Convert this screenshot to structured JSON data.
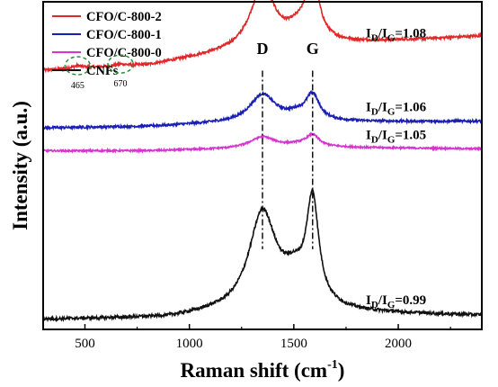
{
  "chart_data": {
    "type": "line",
    "xlabel": "Raman shift (cm",
    "xlabel_sup": "-1",
    "xlabel_end": ")",
    "ylabel": "Intensity (a.u.)",
    "xlim": [
      300,
      2400
    ],
    "x_ticks": [
      500,
      1000,
      1500,
      2000
    ],
    "grid": false,
    "legend_position": "top-left",
    "peak_labels": [
      {
        "text": "D",
        "x": 1350
      },
      {
        "text": "G",
        "x": 1590
      }
    ],
    "series": [
      {
        "name": "CFO/C-800-2",
        "color": "#e0282a",
        "offset": 0.78,
        "baseline": [
          [
            300,
            0.01
          ],
          [
            800,
            0.025
          ],
          [
            1100,
            0.055
          ],
          [
            1700,
            0.09
          ],
          [
            2400,
            0.115
          ]
        ],
        "peaks": [
          [
            1350,
            0.19,
            72
          ],
          [
            1590,
            0.185,
            38
          ],
          [
            1520,
            0.04,
            70
          ],
          [
            465,
            0.008,
            35
          ],
          [
            670,
            0.006,
            40
          ]
        ],
        "noise": 0.004,
        "ratio_text": "1.08",
        "ratio_y": 0.905
      },
      {
        "name": "CFO/C-800-1",
        "color": "#1a1fb4",
        "offset": 0.615,
        "baseline": [
          [
            300,
            0.0
          ],
          [
            800,
            0.004
          ],
          [
            1100,
            0.012
          ],
          [
            1700,
            0.018
          ],
          [
            2400,
            0.02
          ]
        ],
        "peaks": [
          [
            1350,
            0.085,
            75
          ],
          [
            1590,
            0.075,
            38
          ],
          [
            1520,
            0.02,
            70
          ]
        ],
        "noise": 0.0035,
        "ratio_text": "1.06",
        "ratio_y": 0.68
      },
      {
        "name": "CFO/C-800-0",
        "color": "#d633d0",
        "offset": 0.545,
        "baseline": [
          [
            300,
            0.0
          ],
          [
            800,
            0.0
          ],
          [
            1100,
            0.004
          ],
          [
            1700,
            0.01
          ],
          [
            2400,
            0.006
          ]
        ],
        "peaks": [
          [
            1350,
            0.035,
            75
          ],
          [
            1590,
            0.035,
            38
          ],
          [
            1520,
            0.008,
            70
          ]
        ],
        "noise": 0.0025,
        "ratio_text": "1.05",
        "ratio_y": 0.595
      },
      {
        "name": "CNFs",
        "color": "#111111",
        "offset": 0.03,
        "baseline": [
          [
            300,
            0.0
          ],
          [
            900,
            0.004
          ],
          [
            1100,
            0.015
          ],
          [
            1700,
            0.02
          ],
          [
            2400,
            0.012
          ]
        ],
        "peaks": [
          [
            1350,
            0.3,
            80
          ],
          [
            1590,
            0.315,
            36
          ],
          [
            1500,
            0.08,
            70
          ]
        ],
        "noise": 0.0045,
        "ratio_text": "0.99",
        "ratio_y": 0.09
      }
    ],
    "small_peaks": [
      {
        "label": "465",
        "x": 465
      },
      {
        "label": "670",
        "x": 670
      }
    ],
    "ratio_prefix": "I",
    "ratio_sub_d": "D",
    "ratio_slash": "/I",
    "ratio_sub_g": "G",
    "ratio_eq": "="
  }
}
